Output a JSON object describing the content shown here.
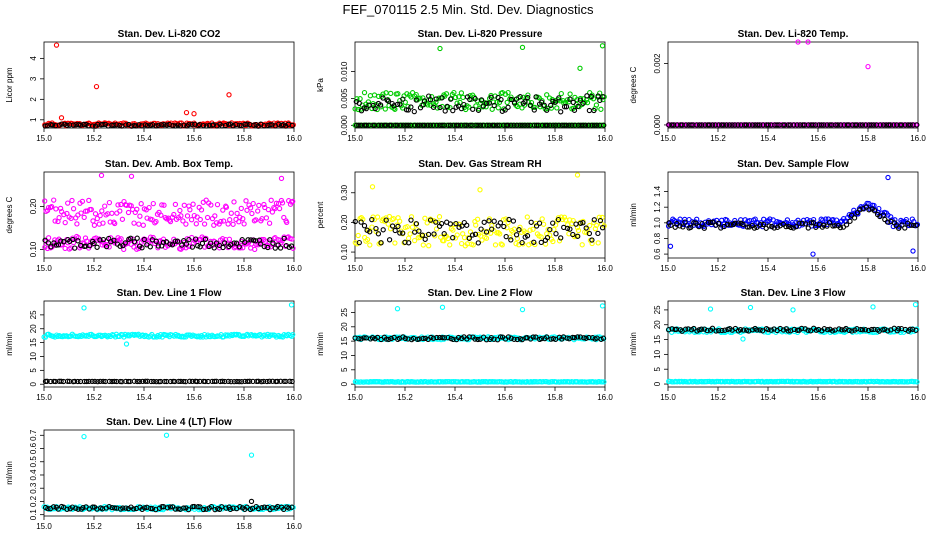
{
  "figure": {
    "title": "FEF_070115  2.5 Min. Std. Dev. Diagnostics"
  },
  "colors": {
    "co2": "#ff0000",
    "pressure": "#00cc00",
    "temp": "#ff00ff",
    "box_temp": "#ff00ff",
    "rh": "#ffff00",
    "sample_flow": "#0000ff",
    "line_flow": "#00ffff",
    "overlay": "#000000"
  },
  "chart_data": [
    {
      "type": "scatter",
      "title": "Stan. Dev. Li-820 CO2",
      "ylabel": "Licor ppm",
      "xlim": [
        15.0,
        16.0
      ],
      "ylim": [
        0.6,
        4.8
      ],
      "xticks": [
        "15.0",
        "15.2",
        "15.4",
        "15.6",
        "15.8",
        "16.0"
      ],
      "yticks": [
        "1",
        "2",
        "3",
        "4"
      ],
      "series": [
        {
          "color_key": "co2",
          "baseline": 0.78,
          "spread": 0.07,
          "seed": 11,
          "outliers": [
            [
              15.05,
              4.65
            ],
            [
              15.21,
              2.62
            ],
            [
              15.74,
              2.22
            ],
            [
              15.57,
              1.35
            ],
            [
              15.6,
              1.3
            ],
            [
              15.07,
              1.1
            ]
          ]
        },
        {
          "color_key": "overlay",
          "baseline": 0.74,
          "spread": 0.05,
          "seed": 12,
          "outliers": []
        }
      ]
    },
    {
      "type": "scatter",
      "title": "Stan. Dev. Li-820 Pressure",
      "ylabel": "kPa",
      "xlim": [
        15.0,
        16.0
      ],
      "ylim": [
        -0.0005,
        0.0155
      ],
      "xticks": [
        "15.0",
        "15.2",
        "15.4",
        "15.6",
        "15.8",
        "16.0"
      ],
      "yticks": [
        "0.000",
        "0.005",
        "0.010"
      ],
      "series": [
        {
          "color_key": "pressure",
          "baseline": 0.0,
          "spread": 0.0,
          "seed": 21,
          "outliers": []
        },
        {
          "color_key": "pressure",
          "baseline": 0.0045,
          "spread": 0.0016,
          "seed": 22,
          "outliers": [
            [
              15.34,
              0.0143
            ],
            [
              15.67,
              0.0145
            ],
            [
              15.99,
              0.0148
            ],
            [
              15.9,
              0.0106
            ]
          ]
        },
        {
          "color_key": "overlay",
          "baseline": 0.0,
          "spread": 0.0,
          "seed": 23,
          "outliers": []
        },
        {
          "color_key": "overlay",
          "baseline": 0.004,
          "spread": 0.0015,
          "seed": 24,
          "outliers": []
        }
      ]
    },
    {
      "type": "scatter",
      "title": "Stan. Dev. Li-820 Temp.",
      "ylabel": "degrees C",
      "xlim": [
        15.0,
        16.0
      ],
      "ylim": [
        -0.0001,
        0.0027
      ],
      "xticks": [
        "15.0",
        "15.2",
        "15.4",
        "15.6",
        "15.8",
        "16.0"
      ],
      "yticks": [
        "0.000",
        "0.002"
      ],
      "series": [
        {
          "color_key": "temp",
          "baseline": 0.0,
          "spread": 0.0,
          "seed": 31,
          "outliers": [
            [
              15.52,
              0.0027
            ],
            [
              15.56,
              0.0027
            ],
            [
              15.8,
              0.0019
            ]
          ]
        },
        {
          "color_key": "overlay",
          "baseline": 0.0,
          "spread": 0.0,
          "seed": 32,
          "outliers": []
        }
      ]
    },
    {
      "type": "scatter",
      "title": "Stan. Dev. Amb. Box Temp.",
      "ylabel": "degrees C",
      "xlim": [
        15.0,
        16.0
      ],
      "ylim": [
        0.08,
        0.28
      ],
      "xticks": [
        "15.0",
        "15.2",
        "15.4",
        "15.6",
        "15.8",
        "16.0"
      ],
      "yticks": [
        "0.10",
        "0.20"
      ],
      "series": [
        {
          "color_key": "box_temp",
          "baseline": 0.115,
          "spread": 0.015,
          "seed": 41,
          "outliers": []
        },
        {
          "color_key": "box_temp",
          "baseline": 0.185,
          "spread": 0.03,
          "seed": 42,
          "outliers": [
            [
              15.23,
              0.272
            ],
            [
              15.35,
              0.27
            ],
            [
              15.95,
              0.265
            ]
          ]
        },
        {
          "color_key": "overlay",
          "baseline": 0.115,
          "spread": 0.012,
          "seed": 43,
          "outliers": []
        }
      ]
    },
    {
      "type": "scatter",
      "title": "Stan. Dev. Gas Stream RH",
      "ylabel": "percent",
      "xlim": [
        15.0,
        16.0
      ],
      "ylim": [
        0.08,
        0.37
      ],
      "xticks": [
        "15.0",
        "15.2",
        "15.4",
        "15.6",
        "15.8",
        "16.0"
      ],
      "yticks": [
        "0.10",
        "0.20",
        "0.30"
      ],
      "series": [
        {
          "color_key": "rh",
          "baseline": 0.17,
          "spread": 0.05,
          "seed": 51,
          "outliers": [
            [
              15.89,
              0.36
            ],
            [
              15.07,
              0.32
            ],
            [
              15.5,
              0.31
            ]
          ]
        },
        {
          "color_key": "overlay",
          "baseline": 0.17,
          "spread": 0.04,
          "seed": 52,
          "outliers": []
        }
      ]
    },
    {
      "type": "scatter",
      "title": "Stan. Dev. Sample Flow",
      "ylabel": "ml/min",
      "xlim": [
        15.0,
        16.0
      ],
      "ylim": [
        0.55,
        1.65
      ],
      "xticks": [
        "15.0",
        "15.2",
        "15.4",
        "15.6",
        "15.8",
        "16.0"
      ],
      "yticks": [
        "0.6",
        "0.8",
        "1.0",
        "1.2",
        "1.4"
      ],
      "series": [
        {
          "color_key": "sample_flow",
          "baseline": 1.0,
          "spread": 0.05,
          "seed": 61,
          "bump": true,
          "outliers": [
            [
              15.88,
              1.58
            ],
            [
              15.01,
              0.7
            ],
            [
              15.98,
              0.64
            ],
            [
              15.58,
              0.6
            ]
          ]
        },
        {
          "color_key": "overlay",
          "baseline": 0.97,
          "spread": 0.04,
          "seed": 62,
          "bump": true,
          "outliers": []
        }
      ]
    },
    {
      "type": "scatter",
      "title": "Stan. Dev. Line 1 Flow",
      "ylabel": "ml/min",
      "xlim": [
        15.0,
        16.0
      ],
      "ylim": [
        -1,
        30
      ],
      "xticks": [
        "15.0",
        "15.2",
        "15.4",
        "15.6",
        "15.8",
        "16.0"
      ],
      "yticks": [
        "0",
        "5",
        "10",
        "15",
        "20",
        "25"
      ],
      "series": [
        {
          "color_key": "line_flow",
          "baseline": 17.5,
          "spread": 0.5,
          "seed": 71,
          "outliers": [
            [
              15.16,
              27.5
            ],
            [
              15.99,
              28.6
            ],
            [
              15.33,
              14.5
            ]
          ]
        },
        {
          "color_key": "overlay",
          "baseline": 1.0,
          "spread": 0.05,
          "seed": 72,
          "outliers": []
        }
      ]
    },
    {
      "type": "scatter",
      "title": "Stan. Dev. Line 2 Flow",
      "ylabel": "ml/min",
      "xlim": [
        15.0,
        16.0
      ],
      "ylim": [
        -1,
        29
      ],
      "xticks": [
        "15.0",
        "15.2",
        "15.4",
        "15.6",
        "15.8",
        "16.0"
      ],
      "yticks": [
        "0",
        "5",
        "10",
        "15",
        "20",
        "25"
      ],
      "series": [
        {
          "color_key": "line_flow",
          "baseline": 0.8,
          "spread": 0.1,
          "seed": 81,
          "outliers": []
        },
        {
          "color_key": "line_flow",
          "baseline": 16.0,
          "spread": 0.5,
          "seed": 82,
          "outliers": [
            [
              15.17,
              26.3
            ],
            [
              15.35,
              26.8
            ],
            [
              15.67,
              26.0
            ],
            [
              15.99,
              27.3
            ]
          ]
        },
        {
          "color_key": "overlay",
          "baseline": 16.0,
          "spread": 0.5,
          "seed": 83,
          "outliers": []
        }
      ]
    },
    {
      "type": "scatter",
      "title": "Stan. Dev. Line 3 Flow",
      "ylabel": "ml/min",
      "xlim": [
        15.0,
        16.0
      ],
      "ylim": [
        -1,
        28
      ],
      "xticks": [
        "15.0",
        "15.2",
        "15.4",
        "15.6",
        "15.8",
        "16.0"
      ],
      "yticks": [
        "0",
        "5",
        "10",
        "15",
        "20",
        "25"
      ],
      "series": [
        {
          "color_key": "line_flow",
          "baseline": 0.8,
          "spread": 0.1,
          "seed": 91,
          "outliers": []
        },
        {
          "color_key": "line_flow",
          "baseline": 18.0,
          "spread": 0.6,
          "seed": 92,
          "outliers": [
            [
              15.17,
              25.3
            ],
            [
              15.33,
              25.8
            ],
            [
              15.5,
              25.0
            ],
            [
              15.82,
              26.0
            ],
            [
              15.99,
              26.8
            ],
            [
              15.3,
              15.2
            ]
          ]
        },
        {
          "color_key": "overlay",
          "baseline": 18.3,
          "spread": 0.5,
          "seed": 93,
          "outliers": []
        }
      ]
    },
    {
      "type": "scatter",
      "title": "Stan. Dev. Line 4 (LT) Flow",
      "ylabel": "ml/min",
      "xlim": [
        15.0,
        16.0
      ],
      "ylim": [
        0.09,
        0.74
      ],
      "xticks": [
        "15.0",
        "15.2",
        "15.4",
        "15.6",
        "15.8",
        "16.0"
      ],
      "yticks": [
        "0.1",
        "0.2",
        "0.3",
        "0.4",
        "0.5",
        "0.6",
        "0.7"
      ],
      "series": [
        {
          "color_key": "line_flow",
          "baseline": 0.15,
          "spread": 0.012,
          "seed": 101,
          "outliers": [
            [
              15.16,
              0.69
            ],
            [
              15.49,
              0.7
            ],
            [
              15.83,
              0.55
            ]
          ]
        },
        {
          "color_key": "overlay",
          "baseline": 0.15,
          "spread": 0.012,
          "seed": 102,
          "outliers": [
            [
              15.83,
              0.2
            ]
          ]
        }
      ]
    }
  ]
}
